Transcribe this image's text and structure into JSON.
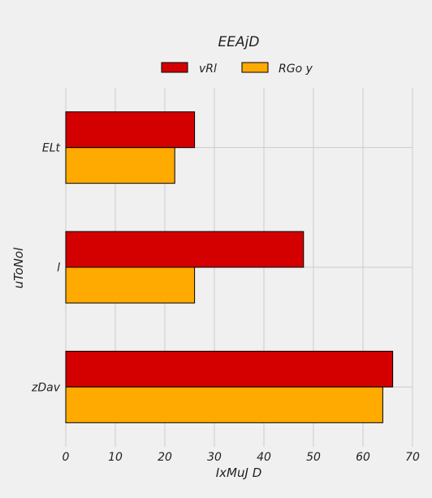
{
  "chart_data": {
    "type": "bar",
    "orientation": "horizontal",
    "title": "EEAjD",
    "xlabel": "IxMuJ D",
    "ylabel": "uToNol",
    "categories": [
      "ELt",
      "l",
      "zDav"
    ],
    "series": [
      {
        "name": "vRl",
        "color": "#d40000",
        "values": [
          26,
          48,
          66
        ]
      },
      {
        "name": "RGo y",
        "color": "#ffaa00",
        "values": [
          22,
          26,
          64
        ]
      }
    ],
    "xlim": [
      0,
      70
    ],
    "xticks": [
      0,
      10,
      20,
      30,
      40,
      50,
      60,
      70
    ],
    "grid": true,
    "legend_position": "top-center"
  }
}
